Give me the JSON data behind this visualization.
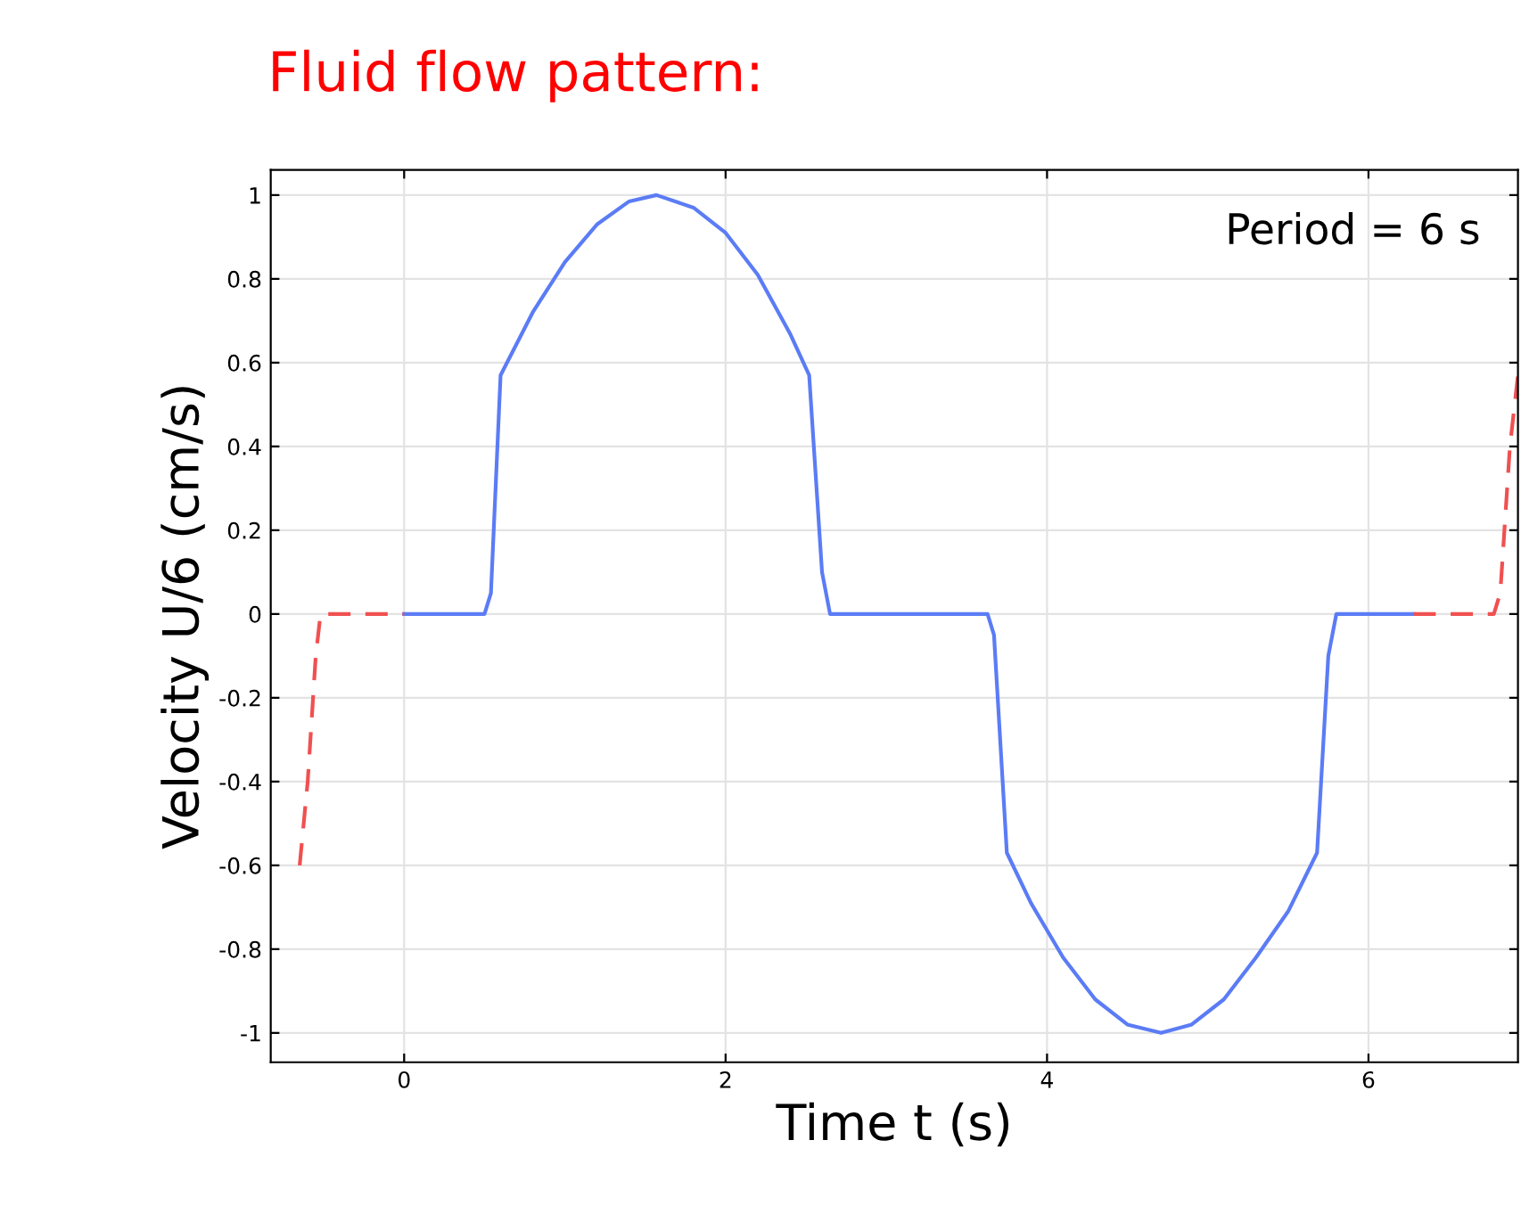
{
  "chart_data": {
    "type": "line",
    "title": "Fluid flow pattern:",
    "xlabel": "Time t (s)",
    "ylabel": "Velocity U/6 (cm/s)",
    "annotations": [
      "Period = 6 s"
    ],
    "xlim": [
      -0.83,
      6.93
    ],
    "xticks": [
      0,
      2,
      4,
      6
    ],
    "ylim": [
      -1.07,
      1.06
    ],
    "yticks": [
      -1,
      -0.8,
      -0.6,
      -0.4,
      -0.2,
      0,
      0.2,
      0.4,
      0.6,
      0.8,
      1
    ],
    "grid": true,
    "series": [
      {
        "color": "#5b7cf5",
        "line_style": "solid",
        "x": [
          0,
          0.5,
          0.54,
          0.6,
          0.8,
          1.0,
          1.2,
          1.4,
          1.57,
          1.8,
          2.0,
          2.2,
          2.4,
          2.52,
          2.6,
          2.65,
          3.0,
          3.63,
          3.67,
          3.75,
          3.9,
          4.1,
          4.3,
          4.5,
          4.71,
          4.9,
          5.1,
          5.3,
          5.5,
          5.68,
          5.75,
          5.8,
          6.28
        ],
        "values": [
          0,
          0,
          0.05,
          0.57,
          0.72,
          0.84,
          0.93,
          0.985,
          1.0,
          0.97,
          0.91,
          0.81,
          0.67,
          0.57,
          0.1,
          0,
          0,
          0,
          -0.05,
          -0.57,
          -0.69,
          -0.82,
          -0.92,
          -0.98,
          -1.0,
          -0.98,
          -0.92,
          -0.82,
          -0.71,
          -0.57,
          -0.1,
          0,
          0
        ]
      },
      {
        "color": "#f05050",
        "line_style": "dashed",
        "x": [
          -0.65,
          -0.6,
          -0.55,
          -0.52,
          0
        ],
        "values": [
          -0.6,
          -0.4,
          -0.1,
          0,
          0
        ]
      },
      {
        "color": "#f05050",
        "line_style": "dashed",
        "x": [
          6.28,
          6.78,
          6.82,
          6.88,
          6.93
        ],
        "values": [
          0,
          0,
          0.05,
          0.4,
          0.57
        ]
      }
    ]
  }
}
